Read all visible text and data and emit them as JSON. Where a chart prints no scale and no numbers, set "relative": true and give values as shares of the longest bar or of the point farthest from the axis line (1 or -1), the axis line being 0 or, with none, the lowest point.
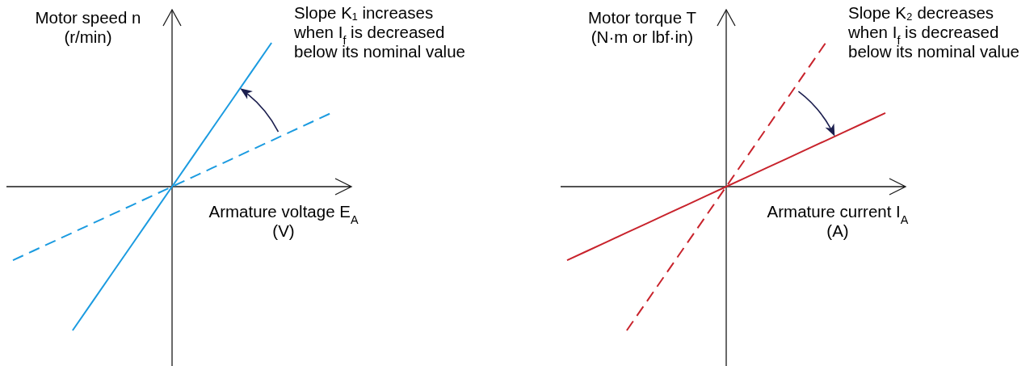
{
  "chart_data": [
    {
      "type": "line",
      "relative": true,
      "ylabel": "Motor speed n\n(r/min)",
      "xlabel": "Armature voltage E$_{A}$\n(V)",
      "annotations": [
        "Slope K₁ increases\nwhen I$_{f}$ is decreased\nbelow its nominal value"
      ],
      "categories": [
        null,
        null,
        null,
        null,
        null,
        null,
        null,
        null,
        null,
        null,
        null,
        null,
        null,
        null,
        null,
        null,
        null
      ],
      "series": [
        {
          "color": "#1b9be0",
          "line_style": "solid",
          "values": [
            null,
            null,
            null,
            -1,
            -0.8,
            -0.6,
            -0.4,
            -0.2,
            0,
            0.2,
            0.4,
            0.6,
            0.8,
            1,
            null,
            null,
            null
          ]
        },
        {
          "color": "#1b9be0",
          "line_style": "dashed",
          "values": [
            -0.512,
            -0.448,
            -0.384,
            -0.32,
            -0.256,
            -0.192,
            -0.128,
            -0.064,
            0,
            0.064,
            0.128,
            0.192,
            0.256,
            0.32,
            0.384,
            0.448,
            0.512
          ]
        }
      ]
    },
    {
      "type": "line",
      "relative": true,
      "ylabel": "Motor torque T\n(N·m or lbf·in)",
      "xlabel": "Armature current I$_{A}$\n(A)",
      "annotations": [
        "Slope K₂ decreases\nwhen I$_{f}$ is decreased\nbelow its nominal value"
      ],
      "categories": [
        null,
        null,
        null,
        null,
        null,
        null,
        null,
        null,
        null,
        null,
        null,
        null,
        null,
        null,
        null,
        null,
        null
      ],
      "series": [
        {
          "color": "#c8232c",
          "line_style": "solid",
          "values": [
            -0.512,
            -0.448,
            -0.384,
            -0.32,
            -0.256,
            -0.192,
            -0.128,
            -0.064,
            0,
            0.064,
            0.128,
            0.192,
            0.256,
            0.32,
            0.384,
            0.448,
            0.512
          ]
        },
        {
          "color": "#c8232c",
          "line_style": "dashed",
          "values": [
            null,
            null,
            null,
            -1,
            -0.8,
            -0.6,
            -0.4,
            -0.2,
            0,
            0.2,
            0.4,
            0.6,
            0.8,
            1,
            null,
            null,
            null
          ]
        }
      ]
    }
  ]
}
